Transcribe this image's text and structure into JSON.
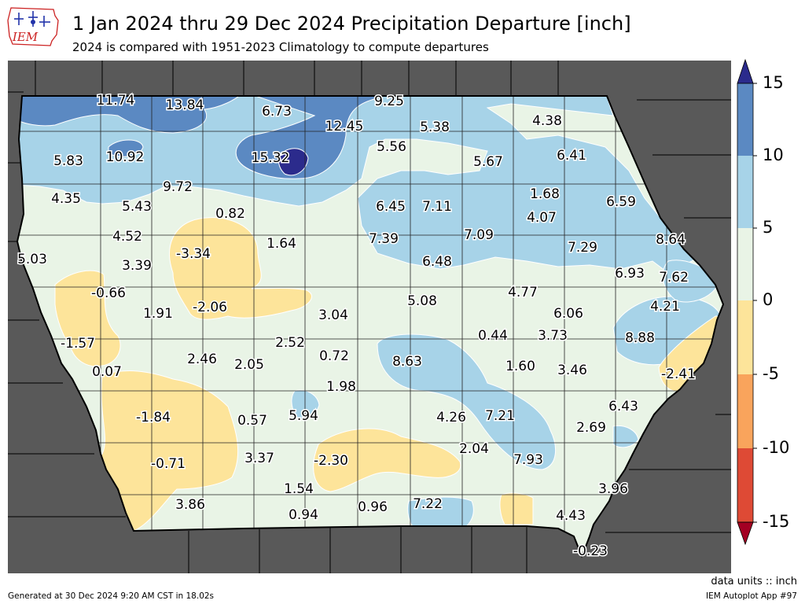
{
  "header": {
    "title": "1 Jan 2024 thru 29 Dec 2024 Precipitation Departure [inch]",
    "subtitle": "2024 is compared with 1951-2023 Climatology to compute departures"
  },
  "logo": {
    "text": "IEM"
  },
  "footer": {
    "units": "data units :: inch",
    "generated": "Generated at 30 Dec 2024 9:20 AM CST in 18.02s",
    "app": "IEM Autoplot App #97"
  },
  "colorbar": {
    "ticks": [
      "15",
      "10",
      "5",
      "0",
      "-5",
      "-10",
      "-15"
    ],
    "colors": {
      "above_15": "#2b2b8c",
      "10_15": "#5b89c2",
      "5_10": "#a7d3e8",
      "0_5": "#e9f4e6",
      "neg5_0": "#fde49a",
      "neg10_neg5": "#f9a45c",
      "neg15_neg10": "#de4a35",
      "below_neg15": "#a30023"
    }
  },
  "colors": {
    "outside": "#595959"
  },
  "map": {
    "labels": [
      {
        "text": "11.74"
      },
      {
        "text": "13.84"
      },
      {
        "text": "6.73"
      },
      {
        "text": "9.25"
      },
      {
        "text": "12.45"
      },
      {
        "text": "5.38"
      },
      {
        "text": "4.38"
      },
      {
        "text": "5.83"
      },
      {
        "text": "10.92"
      },
      {
        "text": "15.32"
      },
      {
        "text": "5.56"
      },
      {
        "text": "5.67"
      },
      {
        "text": "6.41"
      },
      {
        "text": "9.72"
      },
      {
        "text": "1.68"
      },
      {
        "text": "4.35"
      },
      {
        "text": "5.43"
      },
      {
        "text": "0.82"
      },
      {
        "text": "6.45"
      },
      {
        "text": "7.11"
      },
      {
        "text": "4.07"
      },
      {
        "text": "6.59"
      },
      {
        "text": "4.52"
      },
      {
        "text": "7.39"
      },
      {
        "text": "7.09"
      },
      {
        "text": "8.64"
      },
      {
        "text": "-3.34"
      },
      {
        "text": "1.64"
      },
      {
        "text": "7.29"
      },
      {
        "text": "5.03"
      },
      {
        "text": "3.39"
      },
      {
        "text": "6.48"
      },
      {
        "text": "6.93"
      },
      {
        "text": "7.62"
      },
      {
        "text": "-0.66"
      },
      {
        "text": "4.77"
      },
      {
        "text": "5.08"
      },
      {
        "text": "1.91"
      },
      {
        "text": "-2.06"
      },
      {
        "text": "4.21"
      },
      {
        "text": "3.04"
      },
      {
        "text": "6.06"
      },
      {
        "text": "-1.57"
      },
      {
        "text": "0.44"
      },
      {
        "text": "3.73"
      },
      {
        "text": "8.88"
      },
      {
        "text": "2.52"
      },
      {
        "text": "2.46"
      },
      {
        "text": "0.72"
      },
      {
        "text": "2.05"
      },
      {
        "text": "8.63"
      },
      {
        "text": "1.60"
      },
      {
        "text": "3.46"
      },
      {
        "text": "0.07"
      },
      {
        "text": "-2.41"
      },
      {
        "text": "1.98"
      },
      {
        "text": "6.43"
      },
      {
        "text": "-1.84"
      },
      {
        "text": "5.94"
      },
      {
        "text": "0.57"
      },
      {
        "text": "4.26"
      },
      {
        "text": "7.21"
      },
      {
        "text": "2.69"
      },
      {
        "text": "2.04"
      },
      {
        "text": "3.37"
      },
      {
        "text": "-2.30"
      },
      {
        "text": "-0.71"
      },
      {
        "text": "7.93"
      },
      {
        "text": "3.96"
      },
      {
        "text": "1.54"
      },
      {
        "text": "3.86"
      },
      {
        "text": "0.96"
      },
      {
        "text": "7.22"
      },
      {
        "text": "4.43"
      },
      {
        "text": "0.94"
      },
      {
        "text": "-0.23"
      }
    ]
  }
}
